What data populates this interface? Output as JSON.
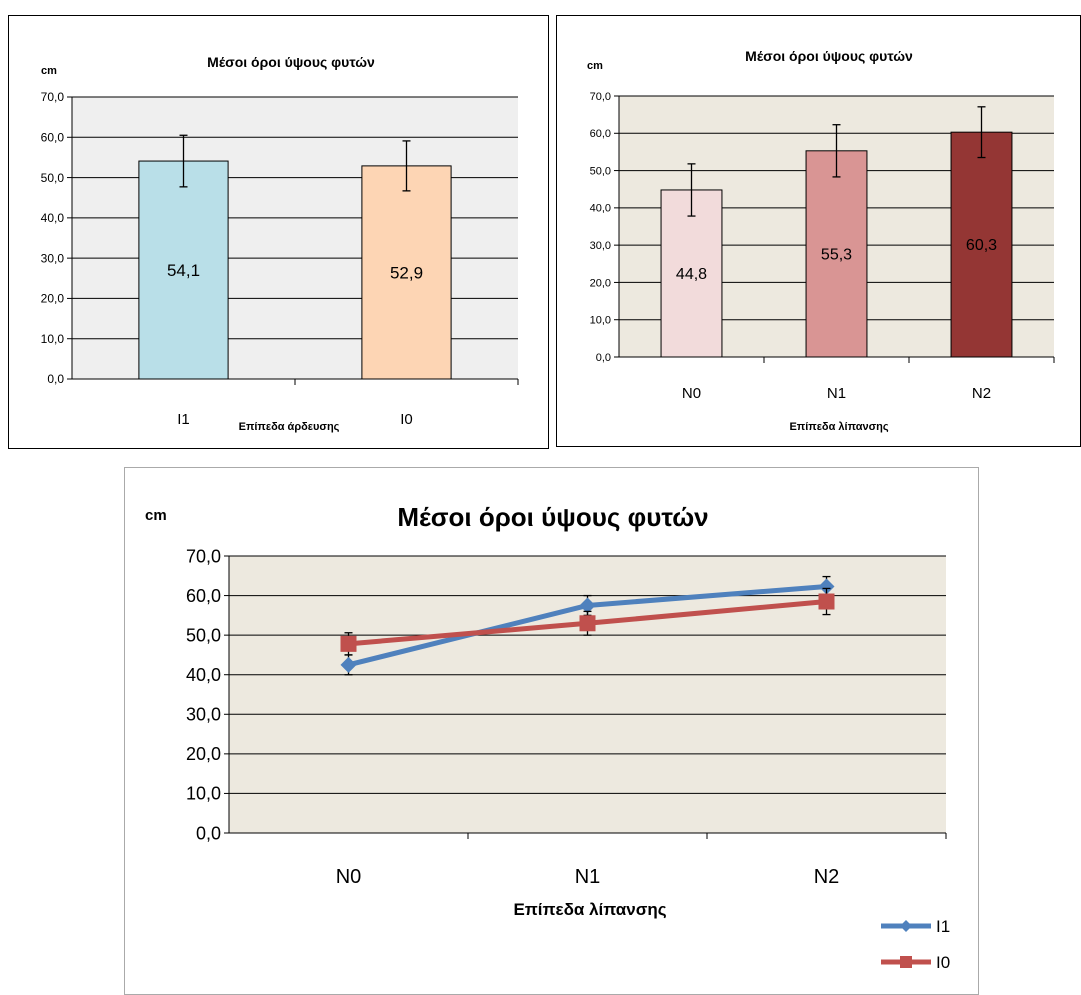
{
  "colors": {
    "plot_bg_chart1": "#efefef",
    "plot_bg_chart2": "#ede9df",
    "plot_bg_chart3": "#ede9df"
  },
  "chart_data": [
    {
      "type": "bar",
      "title": "Μέσοι όροι ύψους φυτών",
      "ylabel": "cm",
      "xlabel": "Επίπεδα άρδευσης",
      "categories": [
        "I1",
        "I0"
      ],
      "values": [
        54.1,
        52.9
      ],
      "value_labels": [
        "54,1",
        "52,9"
      ],
      "error_bars": [
        6.4,
        6.2
      ],
      "bar_colors": [
        "#b9dfe8",
        "#fdd5b4"
      ],
      "ylim": [
        0,
        70
      ],
      "yticks": [
        "0,0",
        "10,0",
        "20,0",
        "30,0",
        "40,0",
        "50,0",
        "60,0",
        "70,0"
      ],
      "grid": true
    },
    {
      "type": "bar",
      "title": "Μέσοι όροι ύψους φυτών",
      "ylabel": "cm",
      "xlabel": "Επίπεδα λίπανσης",
      "categories": [
        "N0",
        "N1",
        "N2"
      ],
      "values": [
        44.8,
        55.3,
        60.3
      ],
      "value_labels": [
        "44,8",
        "55,3",
        "60,3"
      ],
      "error_bars": [
        7.0,
        7.0,
        6.8
      ],
      "bar_colors": [
        "#f2dbdb",
        "#d99594",
        "#943634"
      ],
      "ylim": [
        0,
        70
      ],
      "yticks": [
        "0,0",
        "10,0",
        "20,0",
        "30,0",
        "40,0",
        "50,0",
        "60,0",
        "70,0"
      ],
      "grid": true
    },
    {
      "type": "line",
      "title": "Μέσοι όροι ύψους φυτών",
      "ylabel": "cm",
      "xlabel": "Επίπεδα λίπανσης",
      "categories": [
        "N0",
        "N1",
        "N2"
      ],
      "series": [
        {
          "name": "I1",
          "values": [
            42.5,
            57.5,
            62.3
          ],
          "error_bars": [
            2.5,
            2.5,
            2.5
          ],
          "color": "#4f81bd",
          "marker": "diamond"
        },
        {
          "name": "I0",
          "values": [
            47.8,
            53.0,
            58.5
          ],
          "error_bars": [
            2.8,
            3.0,
            3.3
          ],
          "color": "#c0504d",
          "marker": "square"
        }
      ],
      "ylim": [
        0,
        70
      ],
      "yticks": [
        "0,0",
        "10,0",
        "20,0",
        "30,0",
        "40,0",
        "50,0",
        "60,0",
        "70,0"
      ],
      "grid": true,
      "legend": "bottom-right"
    }
  ]
}
